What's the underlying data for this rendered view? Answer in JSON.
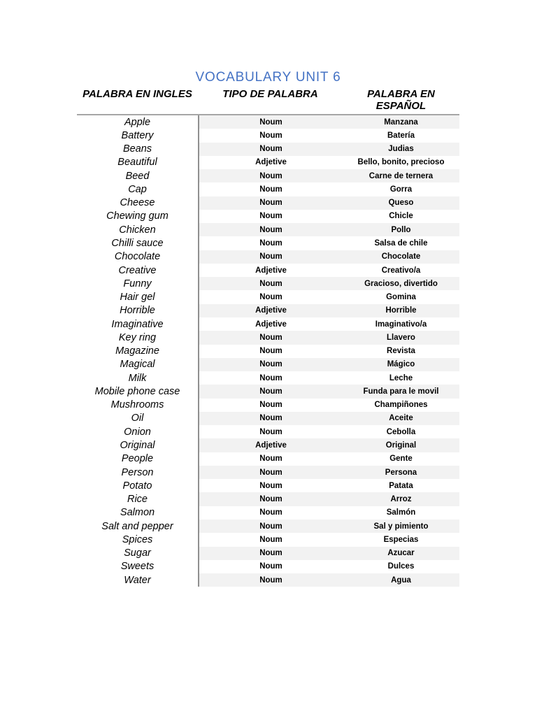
{
  "page": {
    "title": "VOCABULARY UNIT 6"
  },
  "colors": {
    "title": "#4472C4",
    "stripe": "#F2F2F2",
    "rule": "#A6A6A6",
    "divider": "#8F8F8F",
    "text": "#000000"
  },
  "table": {
    "headers": [
      "PALABRA EN INGLES",
      "TIPO DE PALABRA",
      "PALABRA EN ESPAÑOL"
    ],
    "rows": [
      {
        "english": "Apple",
        "type": "Noum",
        "spanish": "Manzana"
      },
      {
        "english": "Battery",
        "type": "Noum",
        "spanish": "Batería"
      },
      {
        "english": "Beans",
        "type": "Noum",
        "spanish": "Judias"
      },
      {
        "english": "Beautiful",
        "type": "Adjetive",
        "spanish": "Bello, bonito, precioso"
      },
      {
        "english": "Beed",
        "type": "Noum",
        "spanish": "Carne de ternera"
      },
      {
        "english": "Cap",
        "type": "Noum",
        "spanish": "Gorra"
      },
      {
        "english": "Cheese",
        "type": "Noum",
        "spanish": "Queso"
      },
      {
        "english": "Chewing gum",
        "type": "Noum",
        "spanish": "Chicle"
      },
      {
        "english": "Chicken",
        "type": "Noum",
        "spanish": "Pollo"
      },
      {
        "english": "Chilli sauce",
        "type": "Noum",
        "spanish": "Salsa de chile"
      },
      {
        "english": "Chocolate",
        "type": "Noum",
        "spanish": "Chocolate"
      },
      {
        "english": "Creative",
        "type": "Adjetive",
        "spanish": "Creativo/a"
      },
      {
        "english": "Funny",
        "type": "Noum",
        "spanish": "Gracioso, divertido"
      },
      {
        "english": "Hair gel",
        "type": "Noum",
        "spanish": "Gomina"
      },
      {
        "english": "Horrible",
        "type": "Adjetive",
        "spanish": "Horrible"
      },
      {
        "english": "Imaginative",
        "type": "Adjetive",
        "spanish": "Imaginativo/a"
      },
      {
        "english": "Key ring",
        "type": "Noum",
        "spanish": "Llavero"
      },
      {
        "english": "Magazine",
        "type": "Noum",
        "spanish": "Revista"
      },
      {
        "english": "Magical",
        "type": "Noum",
        "spanish": "Mágico"
      },
      {
        "english": "Milk",
        "type": "Noum",
        "spanish": "Leche"
      },
      {
        "english": "Mobile phone case",
        "type": "Noum",
        "spanish": "Funda para le movil"
      },
      {
        "english": "Mushrooms",
        "type": "Noum",
        "spanish": "Champiñones"
      },
      {
        "english": "Oil",
        "type": "Noum",
        "spanish": "Aceite"
      },
      {
        "english": "Onion",
        "type": "Noum",
        "spanish": "Cebolla"
      },
      {
        "english": "Original",
        "type": "Adjetive",
        "spanish": "Original"
      },
      {
        "english": "People",
        "type": "Noum",
        "spanish": "Gente"
      },
      {
        "english": "Person",
        "type": "Noum",
        "spanish": "Persona"
      },
      {
        "english": "Potato",
        "type": "Noum",
        "spanish": "Patata"
      },
      {
        "english": "Rice",
        "type": "Noum",
        "spanish": "Arroz"
      },
      {
        "english": "Salmon",
        "type": "Noum",
        "spanish": "Salmón"
      },
      {
        "english": "Salt and pepper",
        "type": "Noum",
        "spanish": "Sal y pimiento"
      },
      {
        "english": "Spices",
        "type": "Noum",
        "spanish": "Especias"
      },
      {
        "english": "Sugar",
        "type": "Noum",
        "spanish": "Azucar"
      },
      {
        "english": "Sweets",
        "type": "Noum",
        "spanish": "Dulces"
      },
      {
        "english": "Water",
        "type": "Noum",
        "spanish": "Agua"
      }
    ]
  }
}
